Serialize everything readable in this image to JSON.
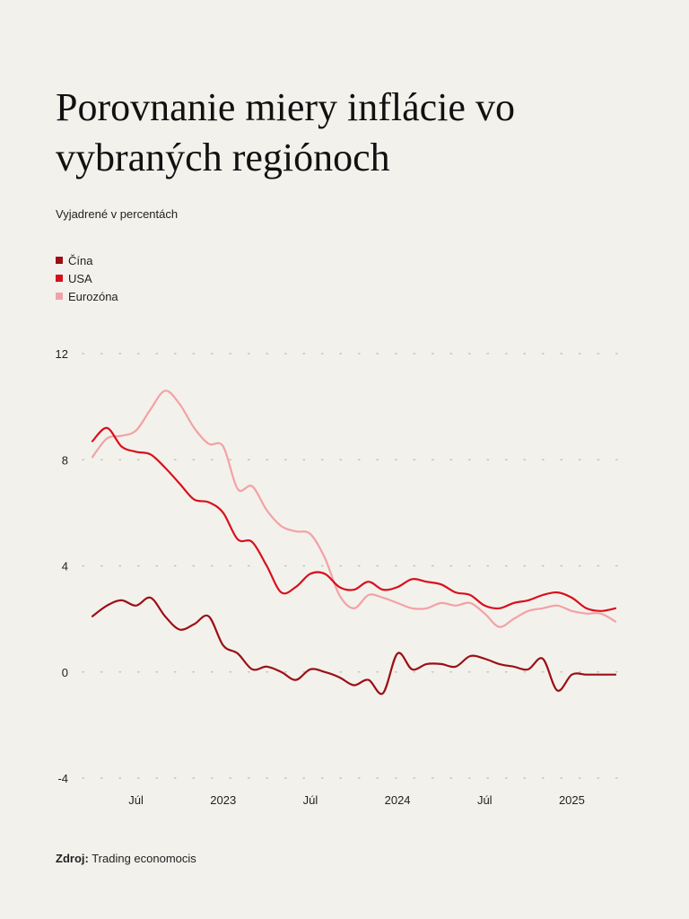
{
  "title": "Porovnanie miery inflácie vo vybraných regiónoch",
  "subtitle": "Vyjadrené v percentách",
  "source": {
    "label": "Zdroj:",
    "text": "Trading economocis"
  },
  "chart_data": {
    "type": "line",
    "title": "Porovnanie miery inflácie vo vybraných regiónoch",
    "subtitle": "Vyjadrené v percentách",
    "xlabel": "",
    "ylabel": "",
    "ylim": [
      -4,
      12
    ],
    "yticks": [
      -4,
      0,
      4,
      8,
      12
    ],
    "xlim": [
      "2022-04",
      "2025-04"
    ],
    "xticks": [
      {
        "label": "Júl",
        "date": "2022-07"
      },
      {
        "label": "2023",
        "date": "2023-01"
      },
      {
        "label": "Júl",
        "date": "2023-07"
      },
      {
        "label": "2024",
        "date": "2024-01"
      },
      {
        "label": "Júl",
        "date": "2024-07"
      },
      {
        "label": "2025",
        "date": "2025-01"
      }
    ],
    "grid": "horizontal dotted",
    "legend": "top-left",
    "x": [
      "2022-04",
      "2022-05",
      "2022-06",
      "2022-07",
      "2022-08",
      "2022-09",
      "2022-10",
      "2022-11",
      "2022-12",
      "2023-01",
      "2023-02",
      "2023-03",
      "2023-04",
      "2023-05",
      "2023-06",
      "2023-07",
      "2023-08",
      "2023-09",
      "2023-10",
      "2023-11",
      "2023-12",
      "2024-01",
      "2024-02",
      "2024-03",
      "2024-04",
      "2024-05",
      "2024-06",
      "2024-07",
      "2024-08",
      "2024-09",
      "2024-10",
      "2024-11",
      "2024-12",
      "2025-01",
      "2025-02",
      "2025-03",
      "2025-04"
    ],
    "series": [
      {
        "name": "Čína",
        "color": "#9b0f16",
        "values": [
          2.1,
          2.5,
          2.7,
          2.5,
          2.8,
          2.1,
          1.6,
          1.8,
          2.1,
          1.0,
          0.7,
          0.1,
          0.2,
          0.0,
          -0.3,
          0.1,
          0.0,
          -0.2,
          -0.5,
          -0.3,
          -0.8,
          0.7,
          0.1,
          0.3,
          0.3,
          0.2,
          0.6,
          0.5,
          0.3,
          0.2,
          0.1,
          0.5,
          -0.7,
          -0.1,
          -0.1,
          -0.1,
          -0.1
        ]
      },
      {
        "name": "USA",
        "color": "#d8101c",
        "values": [
          8.7,
          9.2,
          8.5,
          8.3,
          8.2,
          7.7,
          7.1,
          6.5,
          6.4,
          6.0,
          5.0,
          4.9,
          4.0,
          3.0,
          3.2,
          3.7,
          3.7,
          3.2,
          3.1,
          3.4,
          3.1,
          3.2,
          3.5,
          3.4,
          3.3,
          3.0,
          2.9,
          2.5,
          2.4,
          2.6,
          2.7,
          2.9,
          3.0,
          2.8,
          2.4,
          2.3,
          2.4
        ]
      },
      {
        "name": "Eurozóna",
        "color": "#f2a2a6",
        "values": [
          8.1,
          8.8,
          8.9,
          9.1,
          9.9,
          10.6,
          10.1,
          9.2,
          8.6,
          8.5,
          6.9,
          7.0,
          6.1,
          5.5,
          5.3,
          5.2,
          4.3,
          2.9,
          2.4,
          2.9,
          2.8,
          2.6,
          2.4,
          2.4,
          2.6,
          2.5,
          2.6,
          2.2,
          1.7,
          2.0,
          2.3,
          2.4,
          2.5,
          2.3,
          2.2,
          2.2,
          1.9
        ]
      }
    ]
  }
}
